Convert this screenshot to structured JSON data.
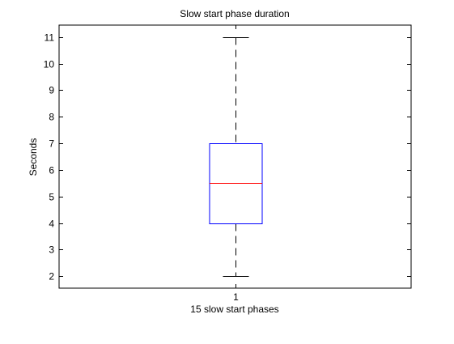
{
  "chart_data": {
    "type": "box",
    "title": "Slow start phase duration",
    "xlabel": "15 slow start phases",
    "ylabel": "Seconds",
    "categories": [
      "1"
    ],
    "ylim": [
      1.55,
      11.45
    ],
    "yticks": [
      2,
      3,
      4,
      5,
      6,
      7,
      8,
      9,
      10,
      11
    ],
    "ytick_labels": [
      "2",
      "3",
      "4",
      "5",
      "6",
      "7",
      "8",
      "9",
      "10",
      "11"
    ],
    "boxes": [
      {
        "category": "1",
        "min": 2,
        "q1": 4,
        "median": 5.5,
        "q3": 7,
        "max": 11
      }
    ],
    "grid": false,
    "colors": {
      "box": "#0000ff",
      "median": "#ff0000",
      "whisker": "#000000",
      "axes": "#000000",
      "background": "#ffffff"
    }
  }
}
